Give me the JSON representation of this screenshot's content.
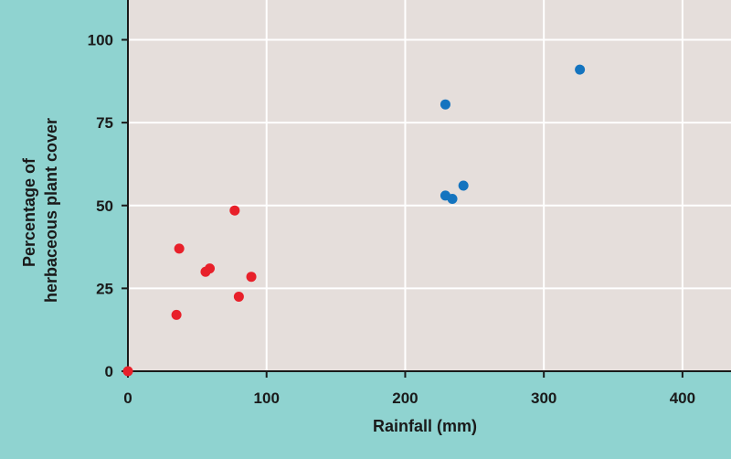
{
  "chart_data": {
    "type": "scatter",
    "title": "",
    "xlabel": "Rainfall (mm)",
    "ylabel_lines": [
      "Percentage of",
      "herbaceous plant cover"
    ],
    "xlim": [
      0,
      435
    ],
    "ylim": [
      0,
      112
    ],
    "x_ticks": [
      0,
      100,
      200,
      300,
      400
    ],
    "y_ticks": [
      0,
      25,
      50,
      75,
      100
    ],
    "grid": true,
    "colors": {
      "plot_bg": "#e5dedb",
      "page_bg": "#8fd3d0",
      "grid": "#ffffff",
      "axis": "#1a1a1a"
    },
    "series": [
      {
        "color": "#e8202a",
        "points": [
          {
            "x": 0,
            "y": 0
          },
          {
            "x": 35,
            "y": 17
          },
          {
            "x": 37,
            "y": 37
          },
          {
            "x": 56,
            "y": 30
          },
          {
            "x": 59,
            "y": 31
          },
          {
            "x": 77,
            "y": 48.5
          },
          {
            "x": 80,
            "y": 22.5
          },
          {
            "x": 89,
            "y": 28.5
          }
        ]
      },
      {
        "color": "#1474bf",
        "points": [
          {
            "x": 229,
            "y": 80.5
          },
          {
            "x": 229,
            "y": 53
          },
          {
            "x": 234,
            "y": 52
          },
          {
            "x": 242,
            "y": 56
          },
          {
            "x": 326,
            "y": 91
          }
        ]
      }
    ]
  }
}
